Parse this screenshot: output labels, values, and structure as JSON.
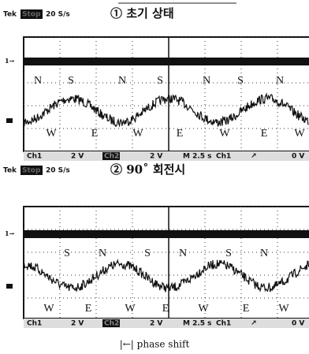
{
  "panels": [
    {
      "header": {
        "brand": "Tek",
        "status": "Stop",
        "rate": "20 S/s",
        "title": "① 초기 상태"
      },
      "marker": "1→",
      "top_labels": [
        "N",
        "S",
        "N",
        "S",
        "N",
        "S",
        "N"
      ],
      "bottom_labels": [
        "W",
        "E",
        "W",
        "E",
        "W",
        "E",
        "W"
      ],
      "footer": [
        "Ch1",
        "2 V",
        "Ch2",
        "2 V",
        "M 2.5 s",
        "Ch1",
        "↗",
        "0 V"
      ]
    },
    {
      "header": {
        "brand": "Tek",
        "status": "Stop",
        "rate": "20 S/s",
        "title": "② 90˚ 회전시"
      },
      "marker": "1→",
      "top_labels": [
        "S",
        "N",
        "S",
        "N",
        "S",
        "N"
      ],
      "bottom_labels": [
        "W",
        "E",
        "W",
        "E",
        "W",
        "E",
        "W"
      ],
      "footer": [
        "Ch1",
        "2 V",
        "Ch2",
        "2 V",
        "M 2.5 s",
        "Ch1",
        "↗",
        "0 V"
      ]
    }
  ],
  "caption": "|←| phase shift"
}
